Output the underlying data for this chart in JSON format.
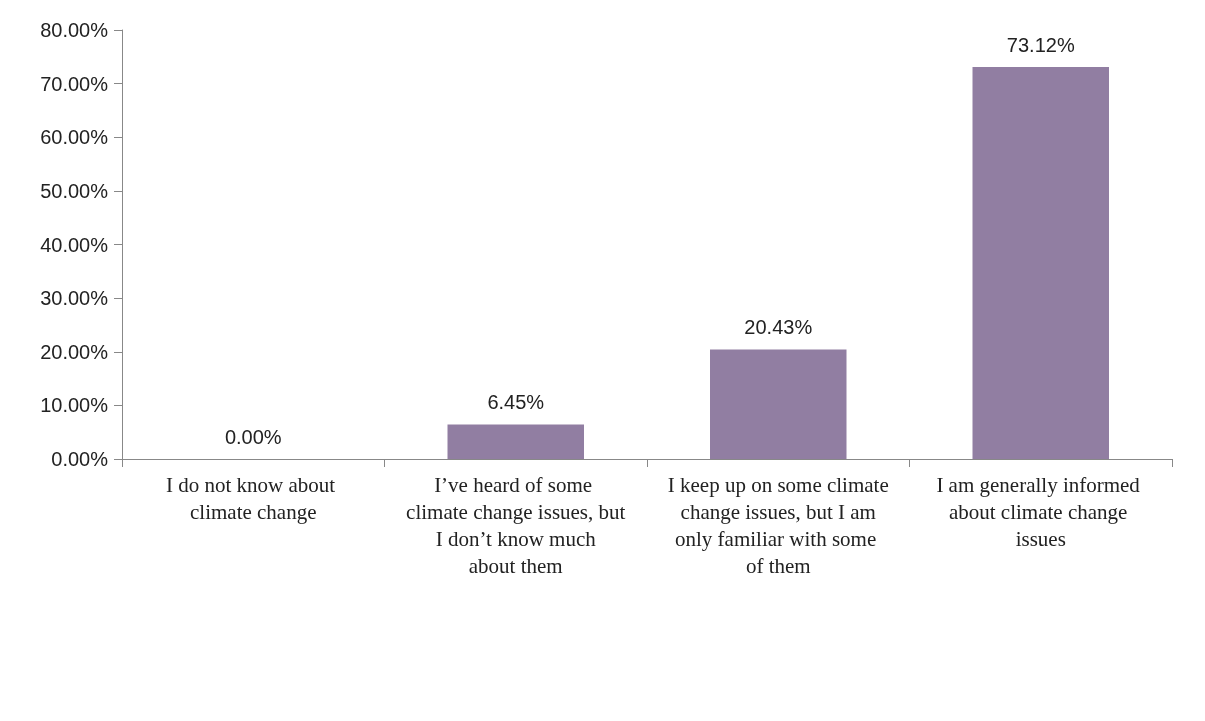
{
  "chart_data": {
    "type": "bar",
    "categories": [
      "I do not know about climate change",
      "I’ve heard of some climate change issues, but I don’t know much about them",
      "I keep up on some climate change issues, but I am only familiar with some of them",
      "I am generally informed about climate change issues"
    ],
    "values": [
      0,
      6.45,
      20.43,
      73.12
    ],
    "color": "#917ea2",
    "value_labels": [
      "0.00%",
      "6.45%",
      "20.43%",
      "73.12%"
    ],
    "ylim": [
      0,
      80
    ],
    "yticks": [
      {
        "value": 0,
        "label": "0.00%"
      },
      {
        "value": 10,
        "label": "10.00%"
      },
      {
        "value": 20,
        "label": "20.00%"
      },
      {
        "value": 30,
        "label": "30.00%"
      },
      {
        "value": 40,
        "label": "40.00%"
      },
      {
        "value": 50,
        "label": "50.00%"
      },
      {
        "value": 60,
        "label": "60.00%"
      },
      {
        "value": 70,
        "label": "70.00%"
      },
      {
        "value": 80,
        "label": "80.00%"
      }
    ],
    "grid": false
  }
}
